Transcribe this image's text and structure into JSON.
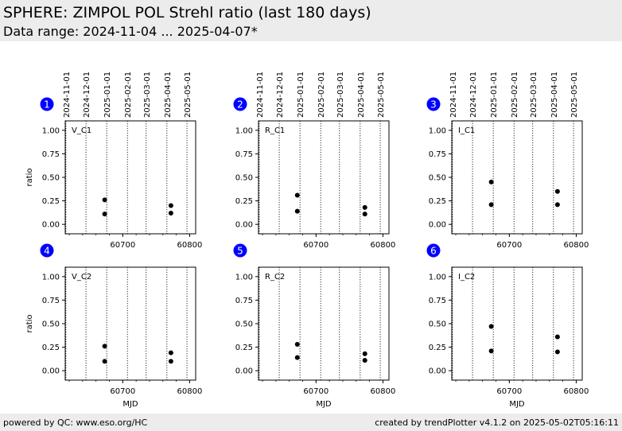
{
  "header": {
    "title": "SPHERE: ZIMPOL POL Strehl ratio (last 180 days)",
    "subtitle": "Data range: 2024-11-04 ... 2025-04-07*"
  },
  "footer": {
    "left": "powered by QC: www.eso.org/HC",
    "right": "created by trendPlotter v4.1.2 on 2025-05-02T05:16:11"
  },
  "colors": {
    "marker": "#000000",
    "badge": "#0000ff",
    "banner": "#ececec"
  },
  "chart_data": [
    {
      "type": "scatter",
      "panel": "1",
      "label": "V_C1",
      "ylabel": "ratio",
      "xlabel": "",
      "ylim": [
        -0.1,
        1.1
      ],
      "xlim": [
        60614,
        60809
      ],
      "x_ticks": [
        60700,
        60800
      ],
      "y_ticks": [
        "0.00",
        "0.25",
        "0.50",
        "0.75",
        "1.00"
      ],
      "date_ticks": [
        "2024-11-01",
        "2024-12-01",
        "2025-01-01",
        "2025-02-01",
        "2025-03-01",
        "2025-04-01",
        "2025-05-01"
      ],
      "date_tick_mjd": [
        60615,
        60645,
        60676,
        60707,
        60735,
        60766,
        60796
      ],
      "points": [
        {
          "x": 60673,
          "y": 0.26
        },
        {
          "x": 60673,
          "y": 0.11
        },
        {
          "x": 60772,
          "y": 0.2
        },
        {
          "x": 60772,
          "y": 0.12
        }
      ]
    },
    {
      "type": "scatter",
      "panel": "2",
      "label": "R_C1",
      "ylabel": "",
      "xlabel": "",
      "ylim": [
        -0.1,
        1.1
      ],
      "xlim": [
        60614,
        60809
      ],
      "x_ticks": [
        60700,
        60800
      ],
      "y_ticks": [
        "0.00",
        "0.25",
        "0.50",
        "0.75",
        "1.00"
      ],
      "date_ticks": [
        "2024-11-01",
        "2024-12-01",
        "2025-01-01",
        "2025-02-01",
        "2025-03-01",
        "2025-04-01",
        "2025-05-01"
      ],
      "date_tick_mjd": [
        60615,
        60645,
        60676,
        60707,
        60735,
        60766,
        60796
      ],
      "points": [
        {
          "x": 60672,
          "y": 0.31
        },
        {
          "x": 60672,
          "y": 0.14
        },
        {
          "x": 60773,
          "y": 0.18
        },
        {
          "x": 60773,
          "y": 0.11
        }
      ]
    },
    {
      "type": "scatter",
      "panel": "3",
      "label": "I_C1",
      "ylabel": "",
      "xlabel": "",
      "ylim": [
        -0.1,
        1.1
      ],
      "xlim": [
        60614,
        60809
      ],
      "x_ticks": [
        60700,
        60800
      ],
      "y_ticks": [
        "0.00",
        "0.25",
        "0.50",
        "0.75",
        "1.00"
      ],
      "date_ticks": [
        "2024-11-01",
        "2024-12-01",
        "2025-01-01",
        "2025-02-01",
        "2025-03-01",
        "2025-04-01",
        "2025-05-01"
      ],
      "date_tick_mjd": [
        60615,
        60645,
        60676,
        60707,
        60735,
        60766,
        60796
      ],
      "points": [
        {
          "x": 60673,
          "y": 0.45
        },
        {
          "x": 60673,
          "y": 0.21
        },
        {
          "x": 60772,
          "y": 0.35
        },
        {
          "x": 60772,
          "y": 0.21
        }
      ]
    },
    {
      "type": "scatter",
      "panel": "4",
      "label": "V_C2",
      "ylabel": "ratio",
      "xlabel": "MJD",
      "ylim": [
        -0.1,
        1.1
      ],
      "xlim": [
        60614,
        60809
      ],
      "x_ticks": [
        60700,
        60800
      ],
      "y_ticks": [
        "0.00",
        "0.25",
        "0.50",
        "0.75",
        "1.00"
      ],
      "date_ticks": [],
      "date_tick_mjd": [
        60615,
        60645,
        60676,
        60707,
        60735,
        60766,
        60796
      ],
      "points": [
        {
          "x": 60673,
          "y": 0.26
        },
        {
          "x": 60673,
          "y": 0.1
        },
        {
          "x": 60772,
          "y": 0.19
        },
        {
          "x": 60772,
          "y": 0.1
        }
      ]
    },
    {
      "type": "scatter",
      "panel": "5",
      "label": "R_C2",
      "ylabel": "",
      "xlabel": "MJD",
      "ylim": [
        -0.1,
        1.1
      ],
      "xlim": [
        60614,
        60809
      ],
      "x_ticks": [
        60700,
        60800
      ],
      "y_ticks": [
        "0.00",
        "0.25",
        "0.50",
        "0.75",
        "1.00"
      ],
      "date_ticks": [],
      "date_tick_mjd": [
        60615,
        60645,
        60676,
        60707,
        60735,
        60766,
        60796
      ],
      "points": [
        {
          "x": 60672,
          "y": 0.28
        },
        {
          "x": 60672,
          "y": 0.14
        },
        {
          "x": 60773,
          "y": 0.18
        },
        {
          "x": 60773,
          "y": 0.11
        }
      ]
    },
    {
      "type": "scatter",
      "panel": "6",
      "label": "I_C2",
      "ylabel": "",
      "xlabel": "MJD",
      "ylim": [
        -0.1,
        1.1
      ],
      "xlim": [
        60614,
        60809
      ],
      "x_ticks": [
        60700,
        60800
      ],
      "y_ticks": [
        "0.00",
        "0.25",
        "0.50",
        "0.75",
        "1.00"
      ],
      "date_ticks": [],
      "date_tick_mjd": [
        60615,
        60645,
        60676,
        60707,
        60735,
        60766,
        60796
      ],
      "points": [
        {
          "x": 60673,
          "y": 0.47
        },
        {
          "x": 60673,
          "y": 0.21
        },
        {
          "x": 60772,
          "y": 0.36
        },
        {
          "x": 60772,
          "y": 0.2
        }
      ]
    }
  ]
}
